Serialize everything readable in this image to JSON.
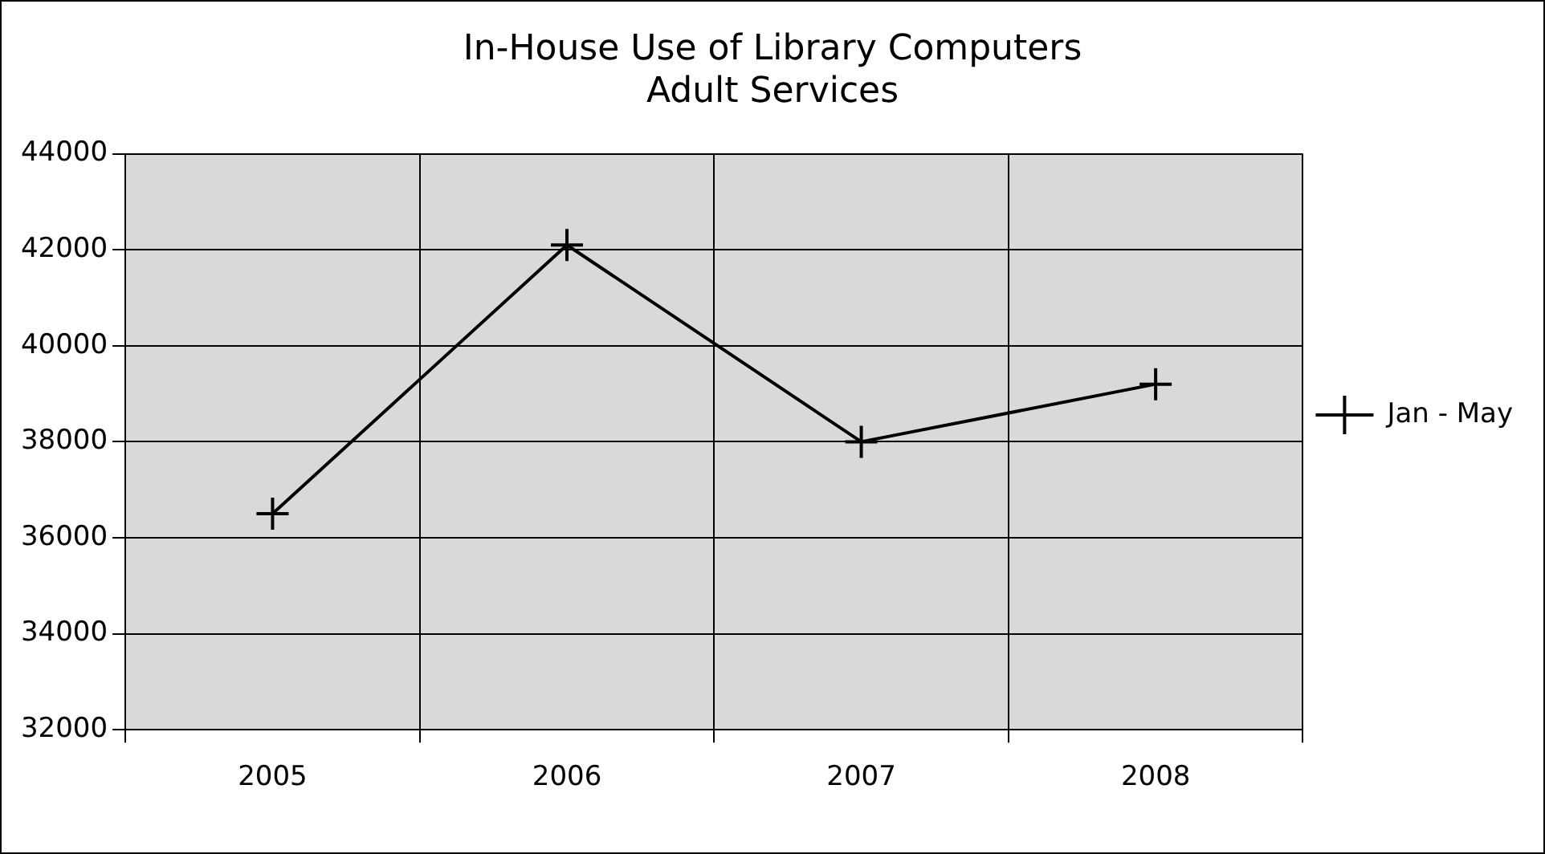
{
  "chart_data": {
    "type": "line",
    "title": "In-House Use of Library Computers\nAdult Services",
    "categories": [
      "2005",
      "2006",
      "2007",
      "2008"
    ],
    "series": [
      {
        "name": "Jan - May",
        "color": "#000000",
        "values": [
          36500,
          42100,
          38000,
          39200
        ]
      }
    ],
    "ylim": [
      32000,
      44000
    ],
    "yticks": [
      32000,
      34000,
      36000,
      38000,
      40000,
      42000,
      44000
    ],
    "grid": true,
    "legend": "right",
    "marker": "cross",
    "line_style": "solid"
  }
}
